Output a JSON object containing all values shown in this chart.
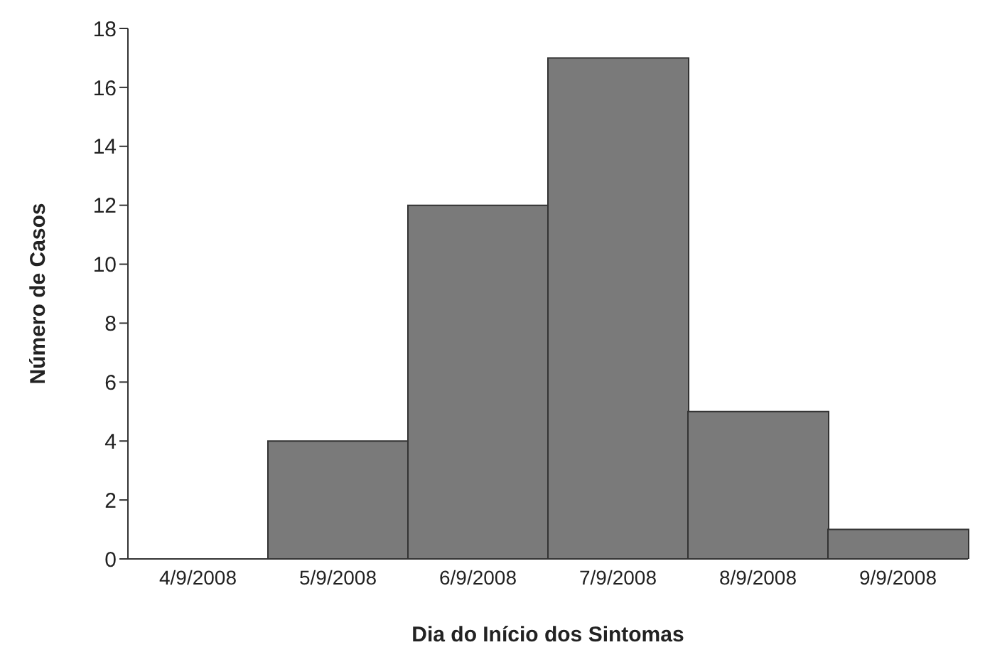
{
  "chart_data": {
    "type": "bar",
    "xlabel": "Dia do Início dos Sintomas",
    "ylabel": "Número de Casos",
    "categories": [
      "4/9/2008",
      "5/9/2008",
      "6/9/2008",
      "7/9/2008",
      "8/9/2008",
      "9/9/2008"
    ],
    "values": [
      0,
      4,
      12,
      17,
      5,
      1
    ],
    "color": "#7a7a7a",
    "ylim": [
      0,
      18
    ],
    "yticks": [
      0,
      2,
      4,
      6,
      8,
      10,
      12,
      14,
      16,
      18
    ],
    "grid": false
  }
}
